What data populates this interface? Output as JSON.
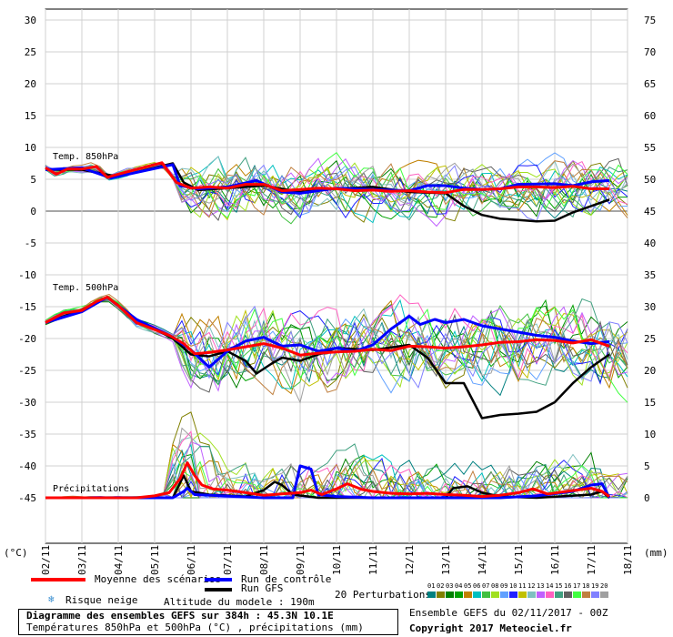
{
  "chart_data": {
    "type": "line",
    "panels": [
      {
        "label": "Temp. 850hPa"
      },
      {
        "label": "Temp. 500hPa"
      },
      {
        "label": "Précipitations"
      }
    ],
    "left_axis": {
      "unit": "(°C)",
      "ticks": [
        30,
        25,
        20,
        15,
        10,
        5,
        0,
        -5,
        -10,
        -15,
        -20,
        -25,
        -30,
        -35,
        -40,
        -45
      ]
    },
    "right_axis": {
      "unit": "(mm)",
      "ticks": [
        75,
        70,
        65,
        60,
        55,
        50,
        45,
        40,
        35,
        30,
        25,
        20,
        15,
        10,
        5,
        0
      ]
    },
    "x_ticks": [
      "02/11",
      "03/11",
      "04/11",
      "05/11",
      "06/11",
      "07/11",
      "08/11",
      "09/11",
      "10/11",
      "11/11",
      "12/11",
      "13/11",
      "14/11",
      "15/11",
      "16/11",
      "17/11",
      "18/11"
    ],
    "series": [
      {
        "name": "Moyenne des scénarios",
        "color": "#ff0000",
        "t850": [
          [
            0,
            6.8
          ],
          [
            0.3,
            5.8
          ],
          [
            0.6,
            6.6
          ],
          [
            1,
            6.6
          ],
          [
            1.4,
            7
          ],
          [
            1.7,
            5.3
          ],
          [
            2,
            5.8
          ],
          [
            2.4,
            6.4
          ],
          [
            2.8,
            7
          ],
          [
            3.2,
            7.6
          ],
          [
            3.6,
            4.5
          ],
          [
            4,
            3.6
          ],
          [
            4.5,
            3.8
          ],
          [
            5,
            3.6
          ],
          [
            5.5,
            4.2
          ],
          [
            6,
            4.2
          ],
          [
            6.5,
            3.2
          ],
          [
            7,
            3.4
          ],
          [
            7.5,
            3.6
          ],
          [
            8,
            3.5
          ],
          [
            8.5,
            3.2
          ],
          [
            9,
            3.3
          ],
          [
            9.5,
            3.1
          ],
          [
            10,
            3.2
          ],
          [
            10.5,
            3
          ],
          [
            11,
            2.9
          ],
          [
            11.5,
            3.4
          ],
          [
            12,
            3.4
          ],
          [
            12.5,
            3.5
          ],
          [
            13,
            3.8
          ],
          [
            13.5,
            3.8
          ],
          [
            14,
            3.7
          ],
          [
            14.5,
            3.9
          ],
          [
            15,
            3.5
          ],
          [
            15.5,
            3.5
          ]
        ],
        "t500": [
          [
            0,
            -17.5
          ],
          [
            0.5,
            -16
          ],
          [
            1,
            -15.6
          ],
          [
            1.4,
            -14.2
          ],
          [
            1.7,
            -13.5
          ],
          [
            2,
            -14.8
          ],
          [
            2.5,
            -17.5
          ],
          [
            3,
            -18.6
          ],
          [
            3.4,
            -19.5
          ],
          [
            3.8,
            -20.8
          ],
          [
            4.1,
            -22.4
          ],
          [
            4.5,
            -22.2
          ],
          [
            5,
            -21.8
          ],
          [
            5.5,
            -21.3
          ],
          [
            6,
            -20.8
          ],
          [
            6.5,
            -21.5
          ],
          [
            7,
            -22.6
          ],
          [
            7.5,
            -22.3
          ],
          [
            8,
            -22.1
          ],
          [
            8.5,
            -22
          ],
          [
            9,
            -21.7
          ],
          [
            9.5,
            -21.9
          ],
          [
            10,
            -21.2
          ],
          [
            10.5,
            -21.3
          ],
          [
            11,
            -21.5
          ],
          [
            11.5,
            -21.3
          ],
          [
            12,
            -21
          ],
          [
            12.5,
            -20.6
          ],
          [
            13,
            -20.5
          ],
          [
            13.5,
            -20.2
          ],
          [
            14,
            -20.3
          ],
          [
            14.5,
            -20.7
          ],
          [
            15,
            -20.2
          ],
          [
            15.5,
            -21.2
          ]
        ],
        "precip": [
          [
            0,
            0
          ],
          [
            2.5,
            0
          ],
          [
            3,
            0.3
          ],
          [
            3.4,
            0.8
          ],
          [
            3.7,
            3
          ],
          [
            3.9,
            5.5
          ],
          [
            4.1,
            3.5
          ],
          [
            4.3,
            2
          ],
          [
            4.6,
            1.4
          ],
          [
            5,
            1.2
          ],
          [
            5.5,
            0.8
          ],
          [
            6,
            0.4
          ],
          [
            6.5,
            0.6
          ],
          [
            7,
            0.8
          ],
          [
            7.3,
            1.2
          ],
          [
            7.6,
            0.5
          ],
          [
            8,
            1.4
          ],
          [
            8.3,
            2.2
          ],
          [
            8.7,
            1.3
          ],
          [
            9,
            1
          ],
          [
            9.5,
            0.7
          ],
          [
            10,
            0.6
          ],
          [
            10.5,
            0.7
          ],
          [
            11,
            0.5
          ],
          [
            11.5,
            0.4
          ],
          [
            12,
            0.2
          ],
          [
            12.5,
            0.4
          ],
          [
            13,
            0.8
          ],
          [
            13.4,
            1.4
          ],
          [
            13.8,
            0.6
          ],
          [
            14.2,
            0.9
          ],
          [
            14.6,
            1.2
          ],
          [
            15,
            1.5
          ],
          [
            15.3,
            1
          ],
          [
            15.5,
            0.2
          ]
        ]
      },
      {
        "name": "Run de contrôle",
        "color": "#0000ff",
        "t850": [
          [
            0,
            6.5
          ],
          [
            1,
            6.8
          ],
          [
            1.8,
            5.2
          ],
          [
            3.5,
            7.3
          ],
          [
            3.7,
            4
          ],
          [
            4.2,
            3.5
          ],
          [
            5,
            3.8
          ],
          [
            5.8,
            4.8
          ],
          [
            6.5,
            3
          ],
          [
            7,
            2.8
          ],
          [
            8,
            3.6
          ],
          [
            9,
            3.4
          ],
          [
            10,
            3.2
          ],
          [
            10.5,
            4
          ],
          [
            11,
            4
          ],
          [
            11.5,
            3.6
          ],
          [
            12,
            3.4
          ],
          [
            12.5,
            3.5
          ],
          [
            13,
            4.2
          ],
          [
            14,
            4.3
          ],
          [
            14.5,
            4
          ],
          [
            15,
            4.6
          ],
          [
            15.5,
            4.8
          ]
        ],
        "t500": [
          [
            0,
            -17.5
          ],
          [
            1,
            -15.8
          ],
          [
            1.7,
            -13.5
          ],
          [
            2.5,
            -17
          ],
          [
            3.5,
            -19.8
          ],
          [
            4,
            -21.8
          ],
          [
            4.5,
            -24.5
          ],
          [
            5,
            -22
          ],
          [
            5.5,
            -20.4
          ],
          [
            6,
            -19.8
          ],
          [
            6.5,
            -21.2
          ],
          [
            7,
            -21
          ],
          [
            7.5,
            -22
          ],
          [
            8,
            -21.5
          ],
          [
            8.5,
            -22
          ],
          [
            9,
            -21
          ],
          [
            9.5,
            -18.5
          ],
          [
            10,
            -16.5
          ],
          [
            10.3,
            -17.8
          ],
          [
            10.7,
            -17
          ],
          [
            11,
            -17.5
          ],
          [
            11.5,
            -17
          ],
          [
            12,
            -18
          ],
          [
            12.5,
            -18.5
          ],
          [
            13,
            -19
          ],
          [
            13.5,
            -19.5
          ],
          [
            14,
            -19.8
          ],
          [
            14.5,
            -20.4
          ],
          [
            15,
            -20.8
          ],
          [
            15.5,
            -20.5
          ]
        ],
        "precip": [
          [
            0,
            0
          ],
          [
            3.5,
            0
          ],
          [
            3.8,
            1
          ],
          [
            3.9,
            1.5
          ],
          [
            4.1,
            0.5
          ],
          [
            6,
            0
          ],
          [
            6.8,
            0
          ],
          [
            7,
            5
          ],
          [
            7.3,
            4.5
          ],
          [
            7.5,
            0.5
          ],
          [
            8,
            0.2
          ],
          [
            9,
            0
          ],
          [
            12.5,
            0
          ],
          [
            13.5,
            0.3
          ],
          [
            14.5,
            1
          ],
          [
            15,
            2
          ],
          [
            15.3,
            2.2
          ],
          [
            15.5,
            0
          ]
        ]
      },
      {
        "name": "Run GFS",
        "color": "#000000",
        "t850": [
          [
            0,
            6.5
          ],
          [
            1,
            6.5
          ],
          [
            2,
            5.4
          ],
          [
            3,
            6.8
          ],
          [
            3.5,
            7.5
          ],
          [
            3.8,
            4.5
          ],
          [
            4.2,
            3.3
          ],
          [
            5,
            3.6
          ],
          [
            6,
            4
          ],
          [
            7,
            3
          ],
          [
            8,
            3.5
          ],
          [
            9,
            3.8
          ],
          [
            10,
            3
          ],
          [
            11,
            2.8
          ],
          [
            11.5,
            0.8
          ],
          [
            12,
            -0.6
          ],
          [
            12.5,
            -1.2
          ],
          [
            13,
            -1.4
          ],
          [
            13.5,
            -1.6
          ],
          [
            14,
            -1.5
          ],
          [
            14.5,
            -0.2
          ],
          [
            15,
            0.8
          ],
          [
            15.5,
            1.8
          ]
        ],
        "t500": [
          [
            0,
            -17.5
          ],
          [
            1,
            -15.5
          ],
          [
            1.7,
            -13.5
          ],
          [
            2.5,
            -17
          ],
          [
            3.5,
            -20
          ],
          [
            4,
            -22.5
          ],
          [
            4.5,
            -22.8
          ],
          [
            5,
            -22
          ],
          [
            5.5,
            -23.5
          ],
          [
            5.8,
            -25.5
          ],
          [
            6.2,
            -24
          ],
          [
            6.5,
            -23
          ],
          [
            7,
            -23.5
          ],
          [
            7.5,
            -22.5
          ],
          [
            8,
            -21.5
          ],
          [
            9,
            -21.8
          ],
          [
            10,
            -21
          ],
          [
            10.5,
            -23
          ],
          [
            11,
            -27
          ],
          [
            11.5,
            -27
          ],
          [
            12,
            -32.5
          ],
          [
            12.5,
            -32
          ],
          [
            13,
            -31.8
          ],
          [
            13.5,
            -31.5
          ],
          [
            14,
            -30
          ],
          [
            14.5,
            -27
          ],
          [
            15,
            -24.5
          ],
          [
            15.5,
            -22.5
          ]
        ],
        "precip": [
          [
            0,
            0
          ],
          [
            3.5,
            0
          ],
          [
            3.8,
            3.5
          ],
          [
            4,
            1
          ],
          [
            4.5,
            0.5
          ],
          [
            5.5,
            0.2
          ],
          [
            6,
            1.2
          ],
          [
            6.3,
            2.5
          ],
          [
            6.5,
            2
          ],
          [
            6.8,
            0.5
          ],
          [
            7.5,
            0
          ],
          [
            11,
            0
          ],
          [
            11.2,
            1.5
          ],
          [
            11.6,
            1.8
          ],
          [
            12,
            0.8
          ],
          [
            12.5,
            0.2
          ],
          [
            13.5,
            0
          ],
          [
            15,
            0.5
          ],
          [
            15.3,
            1
          ],
          [
            15.5,
            0
          ]
        ]
      }
    ]
  },
  "legend": {
    "mean_label": "Moyenne des scénarios",
    "control_label": "Run de contrôle",
    "gfs_label": "Run GFS",
    "snow_label": "Risque neige",
    "altitude_label": "Altitude du modele : 190m",
    "perturbations_label": "20 Perturbations",
    "perturbation_ids": [
      "01",
      "02",
      "03",
      "04",
      "05",
      "06",
      "07",
      "08",
      "09",
      "10",
      "11",
      "12",
      "13",
      "14",
      "15",
      "16",
      "17",
      "18",
      "19",
      "20"
    ],
    "perturbation_colors": [
      "#008080",
      "#808000",
      "#008000",
      "#00a000",
      "#c08000",
      "#00c0c0",
      "#40c040",
      "#a0e020",
      "#60a0ff",
      "#2020ff",
      "#c0c000",
      "#80c0c0",
      "#c060ff",
      "#ff60c0",
      "#40a080",
      "#606060",
      "#40ff40",
      "#c08040",
      "#8080ff",
      "#a0a0a0"
    ]
  },
  "footer": {
    "title": "Diagramme des ensembles GEFS sur 384h : 45.3N 10.1E",
    "subtitle": "Températures 850hPa et 500hPa (°C) , précipitations (mm)",
    "run_info": "Ensemble GEFS du 02/11/2017 - 00Z",
    "copyright": "Copyright 2017 Meteociel.fr"
  }
}
